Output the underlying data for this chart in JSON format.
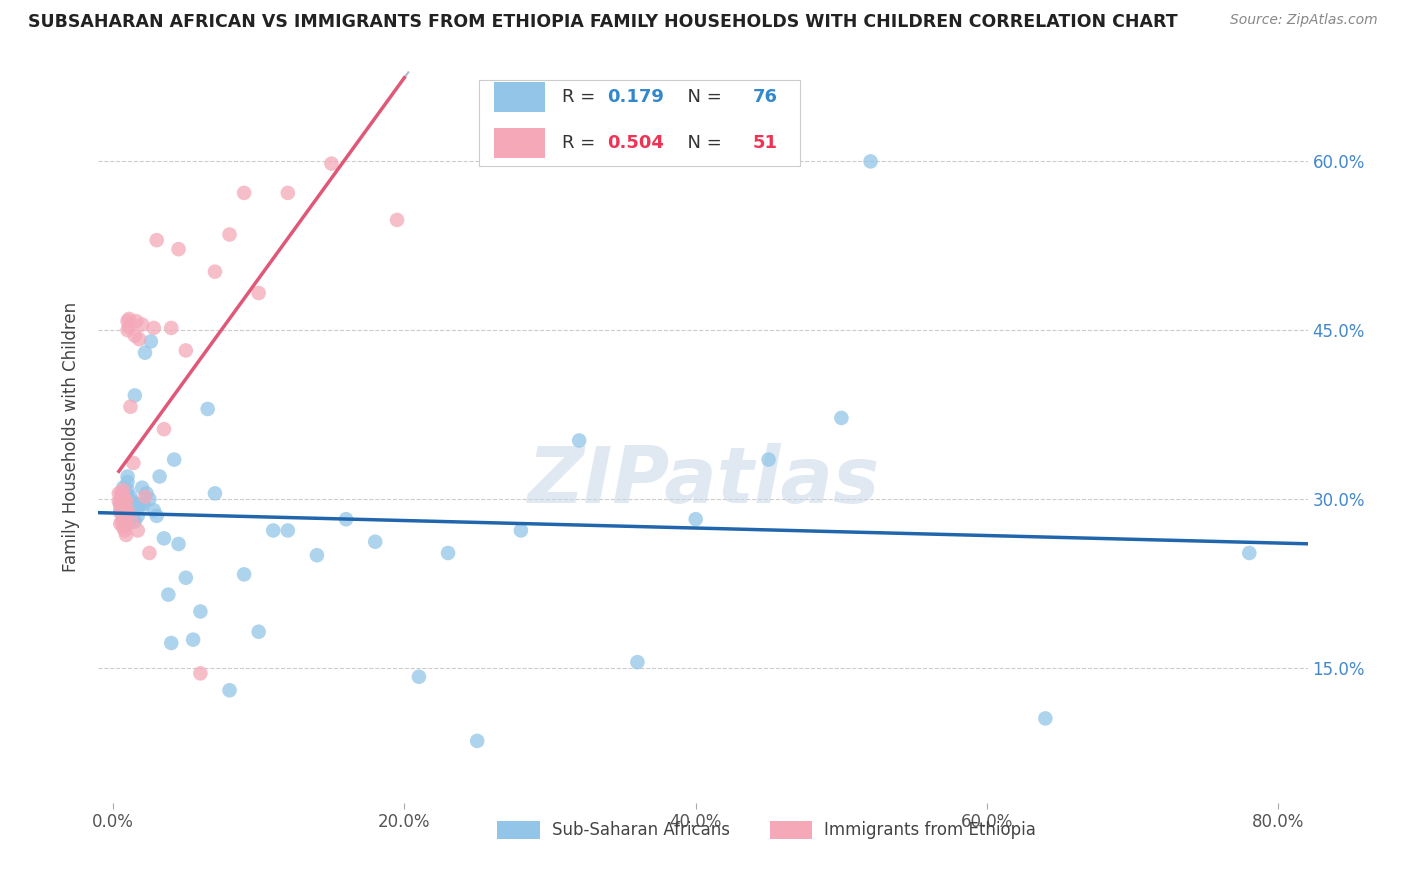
{
  "title": "SUBSAHARAN AFRICAN VS IMMIGRANTS FROM ETHIOPIA FAMILY HOUSEHOLDS WITH CHILDREN CORRELATION CHART",
  "source": "Source: ZipAtlas.com",
  "xlabel_ticks": [
    "0.0%",
    "20.0%",
    "40.0%",
    "60.0%",
    "80.0%"
  ],
  "xlabel_tick_vals": [
    0.0,
    0.2,
    0.4,
    0.6,
    0.8
  ],
  "ylabel_ticks": [
    "15.0%",
    "30.0%",
    "45.0%",
    "60.0%"
  ],
  "ylabel_tick_vals": [
    0.15,
    0.3,
    0.45,
    0.6
  ],
  "ylabel": "Family Households with Children",
  "xlim": [
    -0.01,
    0.82
  ],
  "ylim": [
    0.03,
    0.68
  ],
  "blue_R": 0.179,
  "blue_N": 76,
  "pink_R": 0.504,
  "pink_N": 51,
  "blue_color": "#92C5E8",
  "pink_color": "#F4A8B8",
  "blue_line_color": "#2166AC",
  "pink_line_color": "#E05878",
  "watermark": "ZIPatlas",
  "watermark_color": "#C8D8E8",
  "blue_scatter_x": [
    0.005,
    0.005,
    0.006,
    0.006,
    0.007,
    0.007,
    0.007,
    0.007,
    0.008,
    0.008,
    0.008,
    0.008,
    0.009,
    0.009,
    0.009,
    0.009,
    0.01,
    0.01,
    0.01,
    0.01,
    0.01,
    0.01,
    0.01,
    0.01,
    0.011,
    0.011,
    0.012,
    0.012,
    0.013,
    0.013,
    0.014,
    0.015,
    0.015,
    0.016,
    0.017,
    0.018,
    0.019,
    0.02,
    0.021,
    0.022,
    0.023,
    0.025,
    0.026,
    0.028,
    0.03,
    0.032,
    0.035,
    0.038,
    0.04,
    0.042,
    0.045,
    0.05,
    0.055,
    0.06,
    0.065,
    0.07,
    0.08,
    0.09,
    0.1,
    0.11,
    0.12,
    0.14,
    0.16,
    0.18,
    0.21,
    0.23,
    0.25,
    0.28,
    0.32,
    0.36,
    0.4,
    0.45,
    0.5,
    0.52,
    0.64,
    0.78
  ],
  "blue_scatter_y": [
    0.29,
    0.295,
    0.3,
    0.305,
    0.285,
    0.295,
    0.305,
    0.31,
    0.28,
    0.288,
    0.295,
    0.302,
    0.285,
    0.292,
    0.298,
    0.305,
    0.278,
    0.283,
    0.29,
    0.296,
    0.302,
    0.308,
    0.315,
    0.32,
    0.288,
    0.295,
    0.295,
    0.302,
    0.29,
    0.298,
    0.285,
    0.392,
    0.28,
    0.295,
    0.285,
    0.295,
    0.295,
    0.31,
    0.295,
    0.43,
    0.305,
    0.3,
    0.44,
    0.29,
    0.285,
    0.32,
    0.265,
    0.215,
    0.172,
    0.335,
    0.26,
    0.23,
    0.175,
    0.2,
    0.38,
    0.305,
    0.13,
    0.233,
    0.182,
    0.272,
    0.272,
    0.25,
    0.282,
    0.262,
    0.142,
    0.252,
    0.085,
    0.272,
    0.352,
    0.155,
    0.282,
    0.335,
    0.372,
    0.6,
    0.105,
    0.252
  ],
  "pink_scatter_x": [
    0.004,
    0.004,
    0.005,
    0.005,
    0.005,
    0.006,
    0.006,
    0.006,
    0.006,
    0.007,
    0.007,
    0.007,
    0.007,
    0.007,
    0.008,
    0.008,
    0.008,
    0.008,
    0.009,
    0.009,
    0.009,
    0.009,
    0.01,
    0.01,
    0.01,
    0.011,
    0.011,
    0.012,
    0.013,
    0.014,
    0.015,
    0.016,
    0.017,
    0.018,
    0.02,
    0.022,
    0.025,
    0.028,
    0.03,
    0.035,
    0.04,
    0.045,
    0.05,
    0.06,
    0.07,
    0.08,
    0.09,
    0.1,
    0.12,
    0.15,
    0.195
  ],
  "pink_scatter_y": [
    0.298,
    0.305,
    0.278,
    0.288,
    0.295,
    0.28,
    0.29,
    0.298,
    0.305,
    0.275,
    0.285,
    0.292,
    0.3,
    0.308,
    0.272,
    0.28,
    0.29,
    0.3,
    0.268,
    0.278,
    0.288,
    0.298,
    0.45,
    0.458,
    0.29,
    0.453,
    0.46,
    0.382,
    0.28,
    0.332,
    0.445,
    0.458,
    0.272,
    0.442,
    0.455,
    0.302,
    0.252,
    0.452,
    0.53,
    0.362,
    0.452,
    0.522,
    0.432,
    0.145,
    0.502,
    0.535,
    0.572,
    0.483,
    0.572,
    0.598,
    0.548
  ]
}
